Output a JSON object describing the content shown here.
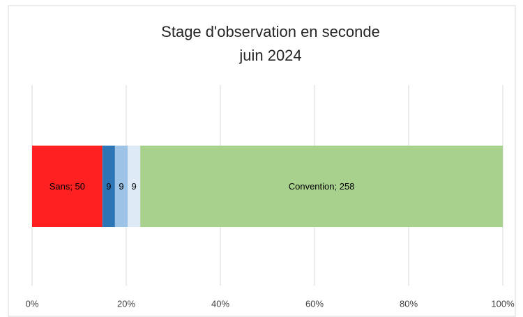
{
  "chart_data": {
    "type": "stacked-bar-100",
    "title": "Stage d'observation en seconde",
    "subtitle": "juin 2024",
    "series": [
      {
        "color": "#ff2121",
        "values": [
          50
        ],
        "value_labels": [
          "Sans; 50"
        ]
      },
      {
        "color": "#2e75b6",
        "values": [
          9
        ]
      },
      {
        "color": "#9dc3e6",
        "values": [
          9
        ]
      },
      {
        "color": "#deebf7",
        "values": [
          9
        ]
      },
      {
        "color": "#a9d18e",
        "values": [
          258
        ],
        "value_labels": [
          "Convention; 258"
        ]
      }
    ],
    "xlim": [
      0,
      100
    ],
    "xticks": [
      {
        "value": 0,
        "label": "0%"
      },
      {
        "value": 20,
        "label": "20%"
      },
      {
        "value": 40,
        "label": "40%"
      },
      {
        "value": 60,
        "label": "60%"
      },
      {
        "value": 80,
        "label": "80%"
      },
      {
        "value": 100,
        "label": "100%"
      }
    ],
    "grid": true
  }
}
